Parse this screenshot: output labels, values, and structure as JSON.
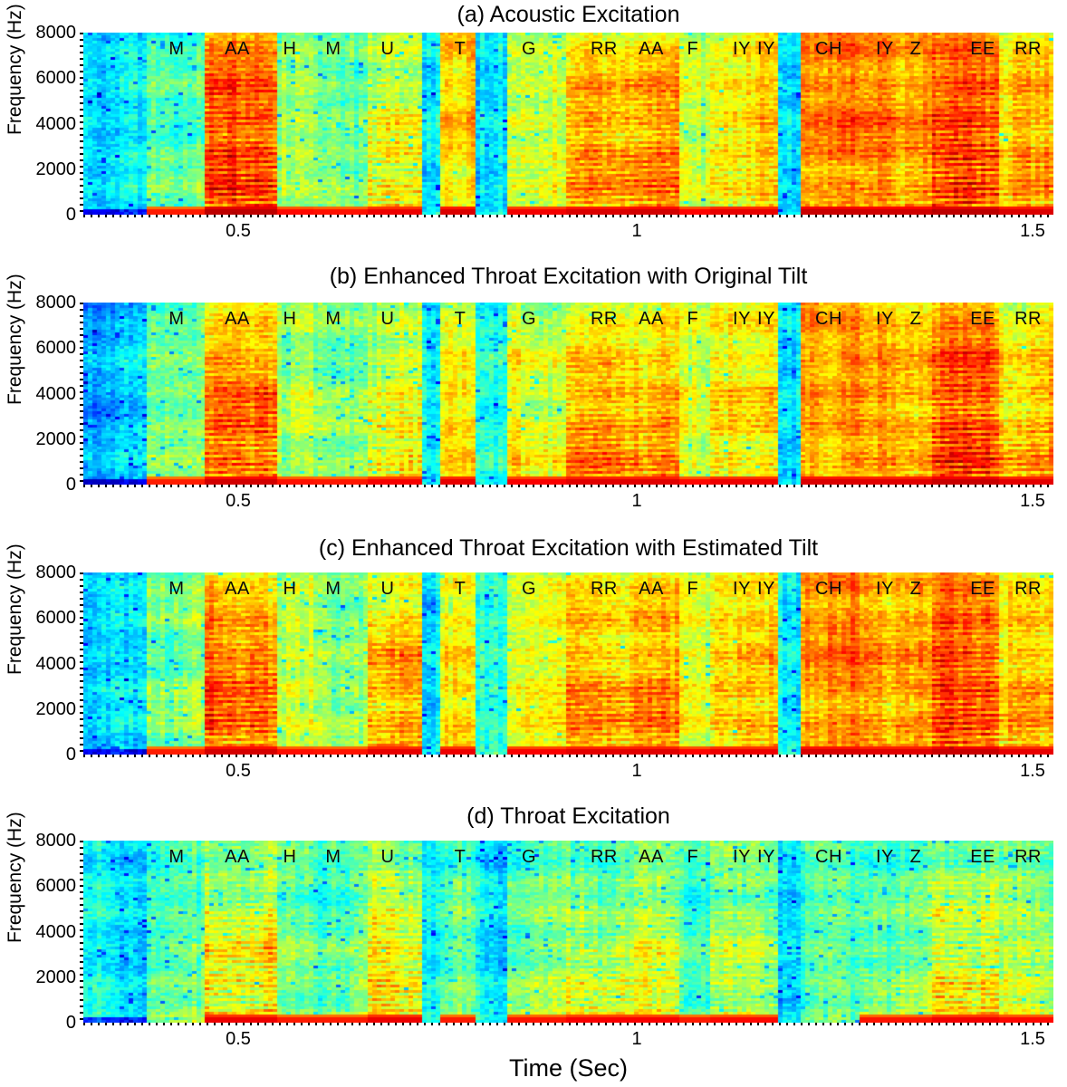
{
  "figure": {
    "x_axis_label": "Time (Sec)",
    "y_axis_label": "Frequency (Hz)"
  },
  "colors": {
    "background": "#ffffff",
    "text": "#000000",
    "colormap_low": "#0000ff",
    "colormap_mid": "#00ffff",
    "colormap_high": "#ff0000"
  },
  "chart_data": {
    "type": "heatmap",
    "subtype": "spectrogram",
    "colormap": "jet",
    "xlabel": "Time (Sec)",
    "ylabel": "Frequency (Hz)",
    "ylim": [
      0,
      8000
    ],
    "xlim_sec": [
      0.3,
      1.54
    ],
    "grid": false,
    "y_ticks": [
      {
        "label": "8000",
        "u": 1.0
      },
      {
        "label": "6000",
        "u": 0.75
      },
      {
        "label": "4000",
        "u": 0.5
      },
      {
        "label": "2000",
        "u": 0.25
      },
      {
        "label": "0",
        "u": 0.0
      }
    ],
    "x_ticks": [
      {
        "label": "0.5",
        "f": 0.1597
      },
      {
        "label": "1",
        "f": 0.5705
      },
      {
        "label": "1.5",
        "f": 0.9785
      }
    ],
    "phoneme_track": [
      {
        "label": "M",
        "f": 0.0962
      },
      {
        "label": "AA",
        "f": 0.1587
      },
      {
        "label": "H",
        "f": 0.2129
      },
      {
        "label": "M",
        "f": 0.2577
      },
      {
        "label": "U",
        "f": 0.3137
      },
      {
        "label": "T",
        "f": 0.3884
      },
      {
        "label": "G",
        "f": 0.4594
      },
      {
        "label": "RR",
        "f": 0.5368
      },
      {
        "label": "AA",
        "f": 0.5854
      },
      {
        "label": "F",
        "f": 0.6283
      },
      {
        "label": "IY",
        "f": 0.6788
      },
      {
        "label": "IY",
        "f": 0.704
      },
      {
        "label": "CH",
        "f": 0.7684
      },
      {
        "label": "IY",
        "f": 0.8263
      },
      {
        "label": "Z",
        "f": 0.8581
      },
      {
        "label": "EE",
        "f": 0.9272
      },
      {
        "label": "RR",
        "f": 0.9739
      }
    ],
    "panels": [
      {
        "key": "a",
        "title": "(a) Acoustic Excitation",
        "base": 0.4,
        "seed": 11,
        "segments": [
          [
            0.0,
            0.062,
            -0.05,
            1,
            1,
            1,
            0
          ],
          [
            0.062,
            0.125,
            0.1,
            1,
            0.7,
            0.6,
            0.2
          ],
          [
            0.125,
            0.2,
            0.4,
            1,
            1.0,
            0.85,
            0.9
          ],
          [
            0.2,
            0.237,
            0.16,
            0.9,
            0.9,
            0.8,
            0
          ],
          [
            0.237,
            0.29,
            0.13,
            1,
            0.6,
            0.55,
            0.2
          ],
          [
            0.29,
            0.347,
            0.24,
            1,
            0.75,
            0.55,
            0.7
          ],
          [
            0.347,
            0.368,
            -0.04,
            1,
            1,
            1,
            0
          ],
          [
            0.368,
            0.405,
            0.3,
            0.8,
            0.95,
            0.95,
            0
          ],
          [
            0.405,
            0.437,
            -0.06,
            1,
            1,
            1,
            0
          ],
          [
            0.437,
            0.5,
            0.22,
            0.95,
            0.9,
            0.8,
            0.3
          ],
          [
            0.5,
            0.562,
            0.3,
            1,
            1.0,
            0.75,
            0.6
          ],
          [
            0.562,
            0.614,
            0.33,
            1,
            1.0,
            0.8,
            0.7
          ],
          [
            0.614,
            0.648,
            0.18,
            0.85,
            0.9,
            0.9,
            0
          ],
          [
            0.648,
            0.715,
            0.26,
            0.95,
            1.0,
            0.9,
            0.5
          ],
          [
            0.715,
            0.74,
            -0.06,
            1,
            1,
            1,
            0
          ],
          [
            0.74,
            0.8,
            0.36,
            0.9,
            1.0,
            1.0,
            0.3
          ],
          [
            0.8,
            0.878,
            0.34,
            0.95,
            1.0,
            0.95,
            0.5
          ],
          [
            0.878,
            0.945,
            0.4,
            1,
            1.0,
            0.9,
            1.0
          ],
          [
            0.945,
            1.0,
            0.3,
            1,
            0.95,
            0.8,
            0.6
          ]
        ]
      },
      {
        "key": "b",
        "title": "(b) Enhanced Throat Excitation with Original Tilt",
        "base": 0.43,
        "seed": 23,
        "segments": [
          [
            0.0,
            0.062,
            -0.12,
            1,
            1,
            1,
            0
          ],
          [
            0.062,
            0.125,
            0.09,
            1,
            0.7,
            0.55,
            0.2
          ],
          [
            0.125,
            0.2,
            0.33,
            1,
            1.05,
            0.6,
            0.8
          ],
          [
            0.2,
            0.237,
            0.13,
            0.9,
            0.9,
            0.7,
            0
          ],
          [
            0.237,
            0.29,
            0.11,
            1,
            0.6,
            0.5,
            0.2
          ],
          [
            0.29,
            0.347,
            0.21,
            1,
            0.75,
            0.5,
            0.6
          ],
          [
            0.347,
            0.368,
            -0.07,
            1,
            1,
            1,
            0
          ],
          [
            0.368,
            0.405,
            0.26,
            1,
            0.9,
            0.7,
            0
          ],
          [
            0.405,
            0.437,
            -0.04,
            1,
            1,
            1,
            0
          ],
          [
            0.437,
            0.5,
            0.2,
            1,
            0.85,
            0.7,
            0.3
          ],
          [
            0.5,
            0.562,
            0.28,
            1.15,
            0.9,
            0.6,
            0.6
          ],
          [
            0.562,
            0.614,
            0.28,
            1.15,
            0.95,
            0.65,
            0.6
          ],
          [
            0.614,
            0.648,
            0.16,
            0.9,
            0.9,
            0.8,
            0
          ],
          [
            0.648,
            0.715,
            0.24,
            0.95,
            1.0,
            0.8,
            0.5
          ],
          [
            0.715,
            0.74,
            -0.09,
            1,
            1,
            1,
            0
          ],
          [
            0.74,
            0.8,
            0.3,
            0.9,
            1.0,
            1.0,
            0.3
          ],
          [
            0.8,
            0.878,
            0.28,
            0.95,
            1.0,
            0.9,
            0.4
          ],
          [
            0.878,
            0.945,
            0.36,
            1,
            1.0,
            0.85,
            0.9
          ],
          [
            0.945,
            1.0,
            0.27,
            1.05,
            0.9,
            0.7,
            0.6
          ]
        ]
      },
      {
        "key": "c",
        "title": "(c) Enhanced Throat Excitation with Estimated Tilt",
        "base": 0.44,
        "seed": 37,
        "segments": [
          [
            0.0,
            0.062,
            -0.1,
            1,
            1,
            1,
            0
          ],
          [
            0.062,
            0.125,
            0.09,
            1,
            0.7,
            0.6,
            0.2
          ],
          [
            0.125,
            0.2,
            0.32,
            1,
            1.05,
            0.6,
            0.8
          ],
          [
            0.2,
            0.237,
            0.14,
            0.9,
            0.9,
            0.75,
            0
          ],
          [
            0.237,
            0.29,
            0.12,
            1,
            0.65,
            0.55,
            0.2
          ],
          [
            0.29,
            0.347,
            0.26,
            0.9,
            1.0,
            0.5,
            0.6
          ],
          [
            0.347,
            0.368,
            -0.07,
            1,
            1,
            1,
            0
          ],
          [
            0.368,
            0.405,
            0.24,
            1,
            0.9,
            0.75,
            0
          ],
          [
            0.405,
            0.437,
            -0.03,
            1,
            1,
            1,
            0
          ],
          [
            0.437,
            0.5,
            0.2,
            1,
            0.85,
            0.75,
            0.3
          ],
          [
            0.5,
            0.562,
            0.27,
            1.1,
            0.9,
            0.65,
            0.6
          ],
          [
            0.562,
            0.614,
            0.28,
            1.1,
            0.95,
            0.7,
            0.6
          ],
          [
            0.614,
            0.648,
            0.17,
            0.9,
            0.9,
            0.8,
            0
          ],
          [
            0.648,
            0.715,
            0.24,
            0.95,
            1.0,
            0.8,
            0.5
          ],
          [
            0.715,
            0.74,
            -0.06,
            1,
            1,
            1,
            0
          ],
          [
            0.74,
            0.8,
            0.31,
            0.9,
            1.0,
            1.0,
            0.3
          ],
          [
            0.8,
            0.878,
            0.28,
            0.95,
            1.0,
            0.9,
            0.4
          ],
          [
            0.878,
            0.945,
            0.36,
            1,
            1.0,
            0.85,
            0.9
          ],
          [
            0.945,
            1.0,
            0.26,
            1.05,
            0.9,
            0.7,
            0.5
          ]
        ]
      },
      {
        "key": "d",
        "title": "(d) Throat Excitation",
        "base": 0.41,
        "seed": 51,
        "segments": [
          [
            0.0,
            0.062,
            -0.04,
            1,
            1,
            1,
            0
          ],
          [
            0.062,
            0.125,
            0.08,
            1,
            0.5,
            0.15,
            0.2
          ],
          [
            0.125,
            0.2,
            0.24,
            1,
            0.85,
            0.25,
            0.8
          ],
          [
            0.2,
            0.237,
            0.1,
            0.9,
            0.6,
            0.2,
            0
          ],
          [
            0.237,
            0.29,
            0.1,
            1,
            0.5,
            0.2,
            0.2
          ],
          [
            0.29,
            0.347,
            0.24,
            1,
            0.8,
            0.3,
            0.8
          ],
          [
            0.347,
            0.368,
            -0.03,
            1,
            1,
            1,
            0
          ],
          [
            0.368,
            0.405,
            0.1,
            0.7,
            0.5,
            0.3,
            0
          ],
          [
            0.405,
            0.437,
            -0.04,
            1,
            1,
            1,
            0
          ],
          [
            0.437,
            0.5,
            0.12,
            1,
            0.6,
            0.25,
            0.2
          ],
          [
            0.5,
            0.562,
            0.2,
            1.05,
            0.6,
            0.2,
            0.5
          ],
          [
            0.562,
            0.614,
            0.2,
            1.05,
            0.65,
            0.2,
            0.5
          ],
          [
            0.614,
            0.648,
            0.1,
            0.8,
            0.5,
            0.25,
            0
          ],
          [
            0.648,
            0.715,
            0.16,
            1,
            0.7,
            0.35,
            0.4
          ],
          [
            0.715,
            0.74,
            -0.05,
            1,
            1,
            1,
            0
          ],
          [
            0.74,
            0.8,
            0.08,
            0.6,
            0.5,
            0.35,
            0
          ],
          [
            0.8,
            0.878,
            0.12,
            0.9,
            0.6,
            0.3,
            0.3
          ],
          [
            0.878,
            0.945,
            0.22,
            1.05,
            0.75,
            0.35,
            0.8
          ],
          [
            0.945,
            1.0,
            0.16,
            1,
            0.7,
            0.3,
            0.4
          ]
        ]
      }
    ]
  }
}
